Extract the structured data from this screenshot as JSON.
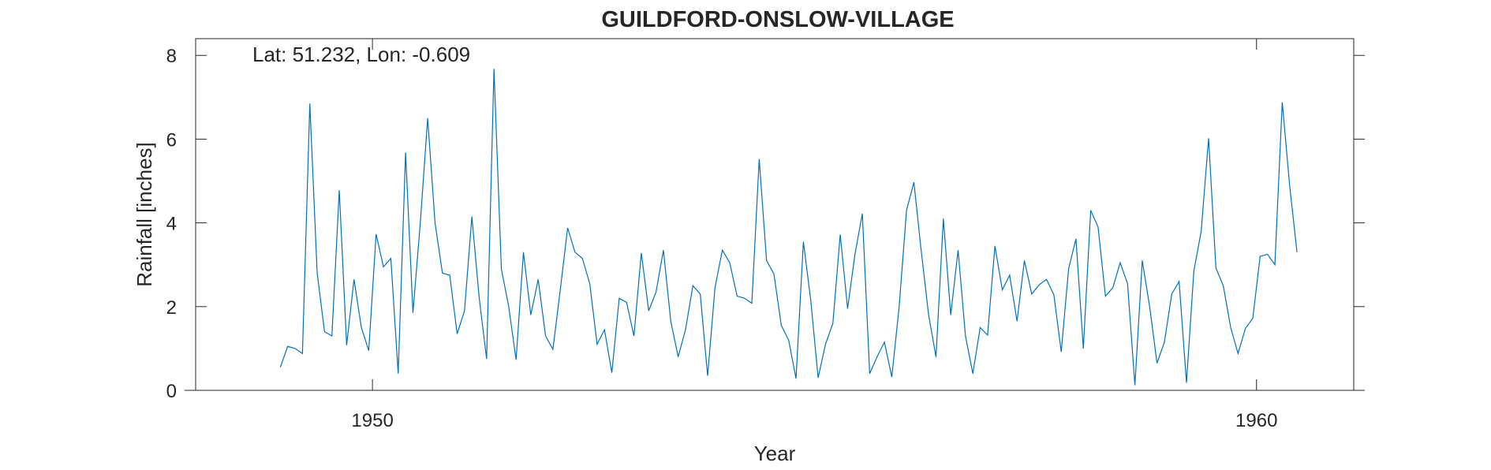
{
  "colors": {
    "line": "#0072BD",
    "axis": "#262626",
    "background": "#ffffff"
  },
  "chart_data": {
    "type": "line",
    "title": "GUILDFORD-ONSLOW-VILLAGE",
    "xlabel": "Year",
    "ylabel": "Rainfall [inches]",
    "annotation": "Lat: 51.232, Lon: -0.609",
    "xlim": [
      1948,
      1961.1
    ],
    "ylim": [
      0,
      8.4
    ],
    "xticks": [
      1950,
      1960
    ],
    "xtick_labels": [
      "1950",
      "1960"
    ],
    "yticks": [
      0,
      2,
      4,
      6,
      8
    ],
    "ytick_labels": [
      "0",
      "2",
      "4",
      "6",
      "8"
    ],
    "grid": false,
    "legend": null,
    "series": [
      {
        "x_start": 1948.958,
        "x_step": 0.0833333,
        "values": [
          0.55,
          1.05,
          1.0,
          0.88,
          6.85,
          2.8,
          1.4,
          1.3,
          4.78,
          1.08,
          2.65,
          1.5,
          0.95,
          3.73,
          2.95,
          3.15,
          0.4,
          5.68,
          1.85,
          4.0,
          6.5,
          4.0,
          2.8,
          2.75,
          1.35,
          1.9,
          4.15,
          2.2,
          0.75,
          7.68,
          2.9,
          2.0,
          0.73,
          3.3,
          1.8,
          2.65,
          1.3,
          0.98,
          2.4,
          3.88,
          3.3,
          3.15,
          2.55,
          1.1,
          1.45,
          0.42,
          2.2,
          2.1,
          1.3,
          3.28,
          1.9,
          2.35,
          3.35,
          1.65,
          0.8,
          1.45,
          2.5,
          2.3,
          0.35,
          2.45,
          3.35,
          3.05,
          2.25,
          2.2,
          2.08,
          5.52,
          3.1,
          2.78,
          1.55,
          1.2,
          0.28,
          3.55,
          2.15,
          0.3,
          1.1,
          1.6,
          3.72,
          1.95,
          3.25,
          4.22,
          0.4,
          0.8,
          1.15,
          0.32,
          2.0,
          4.3,
          4.97,
          3.32,
          1.8,
          0.8,
          4.1,
          1.8,
          3.35,
          1.3,
          0.4,
          1.5,
          1.32,
          3.45,
          2.4,
          2.75,
          1.65,
          3.1,
          2.3,
          2.52,
          2.65,
          2.28,
          0.92,
          2.9,
          3.62,
          1.0,
          4.3,
          3.9,
          2.25,
          2.45,
          3.05,
          2.55,
          0.12,
          3.1,
          2.0,
          0.65,
          1.15,
          2.3,
          2.6,
          0.18,
          2.85,
          3.8,
          6.02,
          2.92,
          2.5,
          1.5,
          0.88,
          1.48,
          1.72,
          3.2,
          3.25,
          3.0,
          6.88,
          4.9,
          3.3
        ]
      }
    ]
  }
}
